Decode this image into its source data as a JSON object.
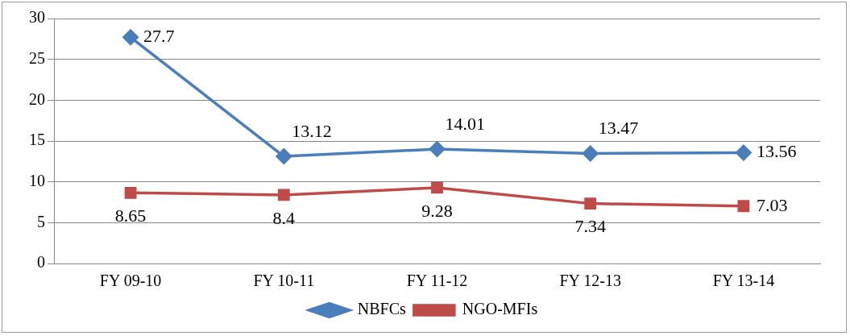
{
  "chart_data": {
    "type": "line",
    "categories": [
      "FY 09-10",
      "FY 10-11",
      "FY 11-12",
      "FY 12-13",
      "FY 13-14"
    ],
    "series": [
      {
        "name": "NBFCs",
        "color": "#4a7ebb",
        "marker": "diamond",
        "values": [
          27.7,
          13.12,
          14.01,
          13.47,
          13.56
        ]
      },
      {
        "name": "NGO-MFIs",
        "color": "#be4b48",
        "marker": "square",
        "values": [
          8.65,
          8.4,
          9.28,
          7.34,
          7.03
        ]
      }
    ],
    "ylim": [
      0,
      30
    ],
    "yticks": [
      0,
      5,
      10,
      15,
      20,
      25,
      30
    ],
    "grid": "y",
    "legend": "bottom",
    "data_labels": true
  }
}
